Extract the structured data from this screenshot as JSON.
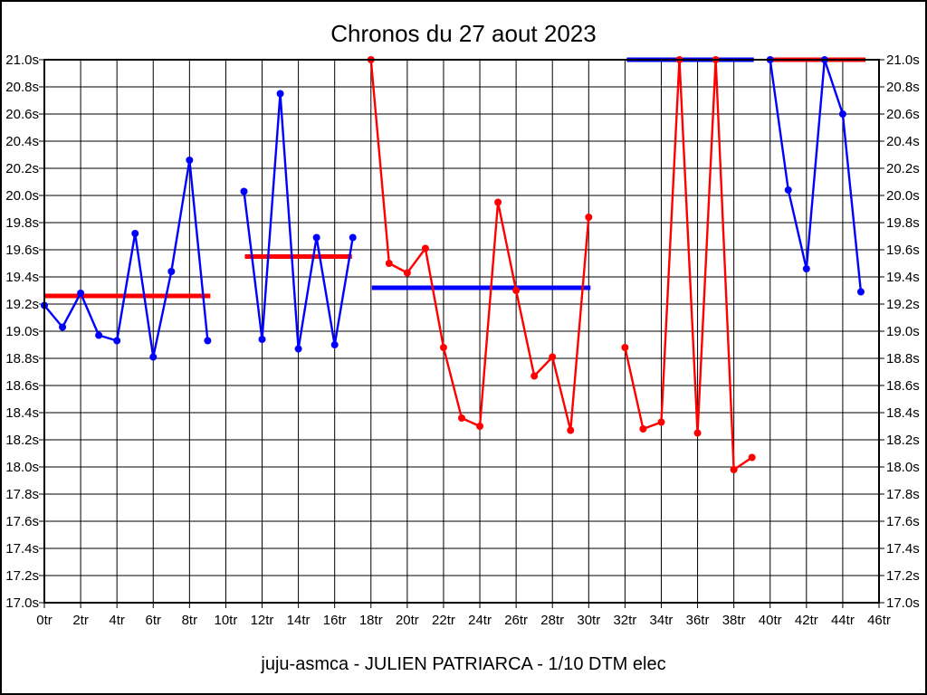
{
  "title": "Chronos du 27 aout 2023",
  "caption": "juju-asmca - JULIEN PATRIARCA - 1/10 DTM elec",
  "colors": {
    "blue_series": "#0000ff",
    "red_series": "#ff0000",
    "grid": "#000000",
    "background": "#ffffff",
    "border": "#000000"
  },
  "chart_data": {
    "type": "line",
    "title": "Chronos du 27 aout 2023",
    "xlabel": "",
    "ylabel": "",
    "x_unit": "tr",
    "y_unit": "s",
    "xlim": [
      0,
      46
    ],
    "ylim": [
      17.0,
      21.0
    ],
    "x_tick_interval": 2,
    "y_tick_interval": 0.2,
    "grid": true,
    "legend": "none",
    "x_tick_labels": [
      "0tr",
      "2tr",
      "4tr",
      "6tr",
      "8tr",
      "10tr",
      "12tr",
      "14tr",
      "16tr",
      "18tr",
      "20tr",
      "22tr",
      "24tr",
      "26tr",
      "28tr",
      "30tr",
      "32tr",
      "34tr",
      "36tr",
      "38tr",
      "40tr",
      "42tr",
      "44tr",
      "46tr"
    ],
    "y_tick_labels_top_to_bottom": [
      "21.0s",
      "20.8s",
      "20.6s",
      "20.4s",
      "20.2s",
      "20.0s",
      "19.8s",
      "19.6s",
      "19.4s",
      "19.2s",
      "19.0s",
      "18.8s",
      "18.6s",
      "18.4s",
      "18.2s",
      "18.0s",
      "17.8s",
      "17.6s",
      "17.4s",
      "17.2s",
      "17.0s"
    ],
    "series": [
      {
        "name": "run-1-blue",
        "color": "#0000ff",
        "points": [
          [
            0,
            19.19
          ],
          [
            1,
            19.03
          ],
          [
            2,
            19.28
          ],
          [
            3,
            18.97
          ],
          [
            4,
            18.93
          ],
          [
            5,
            19.72
          ],
          [
            6,
            18.81
          ],
          [
            7,
            19.44
          ],
          [
            8,
            20.26
          ],
          [
            9,
            18.93
          ]
        ]
      },
      {
        "name": "run-2-blue",
        "color": "#0000ff",
        "points": [
          [
            11,
            20.03
          ],
          [
            12,
            18.94
          ],
          [
            13,
            20.75
          ],
          [
            14,
            18.87
          ],
          [
            15,
            19.69
          ],
          [
            16,
            18.9
          ],
          [
            17,
            19.69
          ]
        ]
      },
      {
        "name": "run-3-red",
        "color": "#ff0000",
        "points": [
          [
            18,
            21.0
          ],
          [
            19,
            19.5
          ],
          [
            20,
            19.43
          ],
          [
            21,
            19.61
          ],
          [
            22,
            18.88
          ],
          [
            23,
            18.36
          ],
          [
            24,
            18.3
          ],
          [
            25,
            19.95
          ],
          [
            26,
            19.3
          ],
          [
            27,
            18.67
          ],
          [
            28,
            18.81
          ],
          [
            29,
            18.27
          ],
          [
            30,
            19.84
          ]
        ]
      },
      {
        "name": "run-4-red",
        "color": "#ff0000",
        "points": [
          [
            32,
            18.88
          ],
          [
            33,
            18.28
          ],
          [
            34,
            18.33
          ],
          [
            35,
            21.0
          ],
          [
            36,
            18.25
          ],
          [
            37,
            21.0
          ],
          [
            38,
            17.98
          ],
          [
            39,
            18.07
          ]
        ]
      },
      {
        "name": "run-5-blue",
        "color": "#0000ff",
        "points": [
          [
            40,
            21.0
          ],
          [
            41,
            20.04
          ],
          [
            42,
            19.46
          ],
          [
            43,
            21.0
          ],
          [
            44,
            20.6
          ],
          [
            45,
            19.29
          ]
        ]
      }
    ],
    "avg_lines": [
      {
        "name": "avg-run-1",
        "color": "#ff0000",
        "value": 19.26,
        "from": 0.0,
        "to": 9.15
      },
      {
        "name": "avg-run-2",
        "color": "#ff0000",
        "value": 19.55,
        "from": 11.05,
        "to": 16.95
      },
      {
        "name": "avg-run-3",
        "color": "#0000ff",
        "value": 19.32,
        "from": 18.05,
        "to": 30.1
      },
      {
        "name": "avg-run-4",
        "color": "#0000ff",
        "value": 21.0,
        "from": 32.1,
        "to": 39.1
      },
      {
        "name": "avg-run-5",
        "color": "#ff0000",
        "value": 21.0,
        "from": 39.85,
        "to": 45.25
      }
    ]
  }
}
